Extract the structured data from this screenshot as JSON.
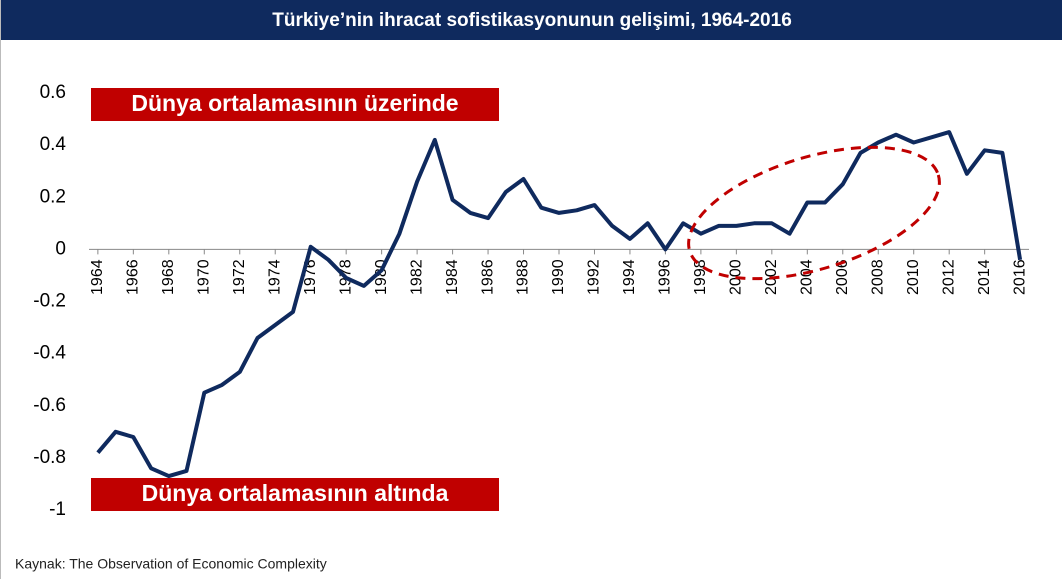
{
  "chart_data": {
    "type": "line",
    "title": "Türkiye’nin ihracat sofistikasyonunun gelişimi, 1964-2016",
    "x": [
      1964,
      1965,
      1966,
      1967,
      1968,
      1969,
      1970,
      1971,
      1972,
      1973,
      1974,
      1975,
      1976,
      1977,
      1978,
      1979,
      1980,
      1981,
      1982,
      1983,
      1984,
      1985,
      1986,
      1987,
      1988,
      1989,
      1990,
      1991,
      1992,
      1993,
      1994,
      1995,
      1996,
      1997,
      1998,
      1999,
      2000,
      2001,
      2002,
      2003,
      2004,
      2005,
      2006,
      2007,
      2008,
      2009,
      2010,
      2011,
      2012,
      2013,
      2014,
      2015,
      2016
    ],
    "series": [
      {
        "color": "#0f2a5e",
        "values": [
          -0.78,
          -0.7,
          -0.72,
          -0.84,
          -0.87,
          -0.85,
          -0.55,
          -0.52,
          -0.47,
          -0.34,
          -0.29,
          -0.24,
          0.01,
          -0.04,
          -0.11,
          -0.14,
          -0.08,
          0.06,
          0.26,
          0.42,
          0.19,
          0.14,
          0.12,
          0.22,
          0.27,
          0.16,
          0.14,
          0.15,
          0.17,
          0.09,
          0.04,
          0.1,
          0.0,
          0.1,
          0.06,
          0.09,
          0.09,
          0.1,
          0.1,
          0.06,
          0.18,
          0.18,
          0.25,
          0.37,
          0.41,
          0.44,
          0.41,
          0.43,
          0.45,
          0.29,
          0.38,
          0.37,
          -0.04
        ]
      }
    ],
    "xlim": [
      1963.5,
      2016.5
    ],
    "xticks": [
      1964,
      1966,
      1968,
      1970,
      1972,
      1974,
      1976,
      1978,
      1980,
      1982,
      1984,
      1986,
      1988,
      1990,
      1992,
      1994,
      1996,
      1998,
      2000,
      2002,
      2004,
      2006,
      2008,
      2010,
      2012,
      2014,
      2016
    ],
    "ylim": [
      -1,
      0.6
    ],
    "yticks": [
      -1,
      -0.8,
      -0.6,
      -0.4,
      -0.2,
      0,
      0.2,
      0.4,
      0.6
    ],
    "annotations": [
      "Dünya ortalamasının üzerinde",
      "Dünya ortalamasının altında"
    ],
    "source": "Kaynak: The Observation of Economic Complexity"
  }
}
